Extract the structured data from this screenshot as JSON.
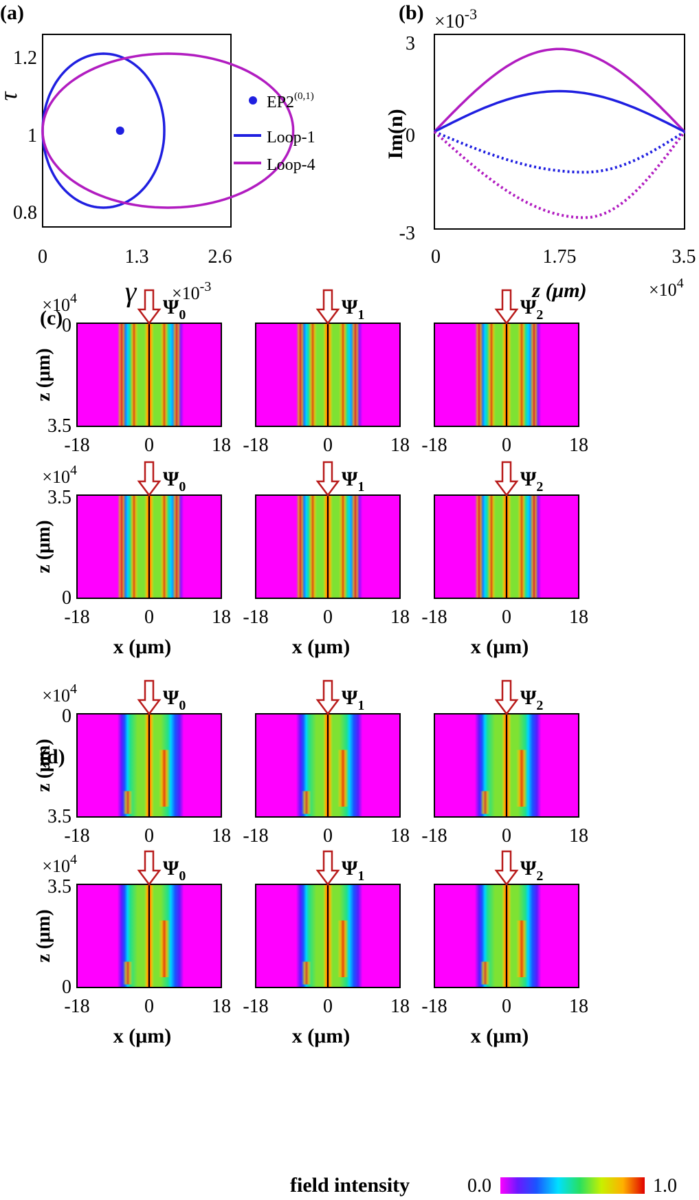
{
  "panels": {
    "a": "(a)",
    "b": "(b)",
    "c": "(c)",
    "d": "(d)"
  },
  "chart_a": {
    "type": "line",
    "xlabel": "γ",
    "x_exponent": "×10",
    "x_exponent_power": "-3",
    "ylabel": "τ",
    "xlim": [
      0,
      2.6
    ],
    "ylim": [
      0.75,
      1.25
    ],
    "x_ticks": [
      "0",
      "1.3",
      "2.6"
    ],
    "y_ticks": [
      "1.2",
      "1",
      "0.8"
    ],
    "ep_point": {
      "x": 1.07,
      "y": 1.0
    },
    "legend": {
      "ep_label": "EP2",
      "ep_superscript": "(0,1)",
      "loop1": "Loop-1",
      "loop4": "Loop-4"
    },
    "series": [
      {
        "name": "Loop-1",
        "color": "#1f1fe0",
        "center": [
          0,
          1.0
        ],
        "gamma_max": 0.84,
        "tau_amp": 0.2
      },
      {
        "name": "Loop-4",
        "color": "#b11cc0",
        "center": [
          0,
          1.0
        ],
        "gamma_max": 1.73,
        "tau_amp": 0.2
      }
    ],
    "colors": {
      "loop1": "#1f1fe0",
      "loop4": "#b11cc0",
      "ep": "#1f1fe0"
    }
  },
  "chart_b": {
    "type": "line",
    "ylabel": "Im(n)",
    "y_exponent": "×10",
    "y_exponent_power": "-3",
    "xlabel": "z (μm)",
    "x_exponent": "×10",
    "x_exponent_power": "4",
    "xlim": [
      0,
      3.5
    ],
    "ylim": [
      -3,
      3
    ],
    "x_ticks": [
      "0",
      "1.75",
      "3.5"
    ],
    "y_ticks": [
      "3",
      "0",
      "-3"
    ],
    "series": [
      {
        "color": "#b11cc0",
        "style": "solid",
        "peak": 2.55,
        "peak_z": 1.75
      },
      {
        "color": "#1f1fe0",
        "style": "solid",
        "peak": 1.25,
        "peak_z": 1.75
      },
      {
        "color": "#1f1fe0",
        "style": "dotted",
        "peak": -1.25,
        "peak_z": 2.1
      },
      {
        "color": "#b11cc0",
        "style": "dotted",
        "peak": -2.65,
        "peak_z": 2.1
      }
    ]
  },
  "field_maps": {
    "exponent": "×10",
    "exponent_power": "4",
    "z_label": "z (μm)",
    "x_label": "x (μm)",
    "x_ticks": [
      "-18",
      "0",
      "18"
    ],
    "z_top_forward": "0",
    "z_bottom_forward": "3.5",
    "z_top_backward": "3.5",
    "z_bottom_backward": "0",
    "inputs": [
      {
        "symbol": "Ψ",
        "sub": "0"
      },
      {
        "symbol": "Ψ",
        "sub": "1"
      },
      {
        "symbol": "Ψ",
        "sub": "2"
      }
    ],
    "colorbar": {
      "label": "field intensity",
      "min": "0.0",
      "max": "1.0"
    }
  }
}
